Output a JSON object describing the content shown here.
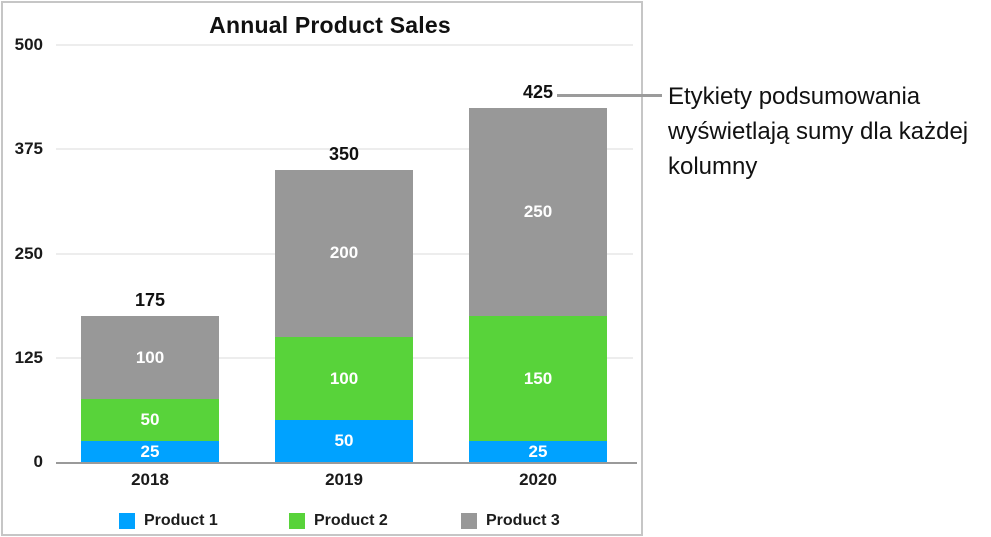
{
  "chart_data": {
    "type": "bar",
    "stacked": true,
    "title": "Annual Product Sales",
    "categories": [
      "2018",
      "2019",
      "2020"
    ],
    "series": [
      {
        "name": "Product 1",
        "color": "#00a2ff",
        "values": [
          25,
          50,
          25
        ]
      },
      {
        "name": "Product 2",
        "color": "#58d33a",
        "values": [
          50,
          100,
          150
        ]
      },
      {
        "name": "Product 3",
        "color": "#989898",
        "values": [
          100,
          200,
          250
        ]
      }
    ],
    "totals": [
      175,
      350,
      425
    ],
    "y_ticks": [
      0,
      125,
      250,
      375,
      500
    ],
    "ylim": [
      0,
      500
    ],
    "grid": true,
    "legend_position": "bottom",
    "value_labels": "inside-white",
    "summary_labels": "above-bar-totals"
  },
  "annotation": {
    "lines": [
      "Etykiety podsumowania",
      "wyświetlają sumy dla każdej",
      "kolumny"
    ]
  },
  "colors": {
    "panel_border": "#c6c6c6",
    "gridline": "#ededed",
    "axis": "#9a9a9a",
    "callout_line": "#9b9b9b",
    "text": "#111111",
    "segment_text": "#ffffff"
  }
}
